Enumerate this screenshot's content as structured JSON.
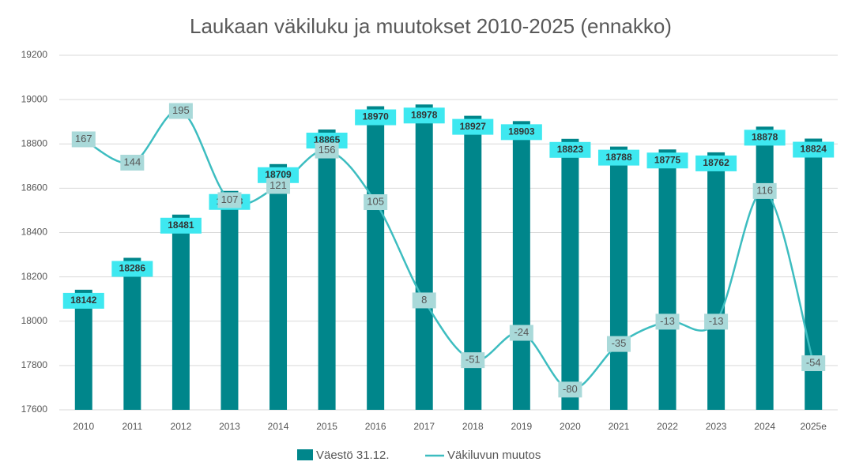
{
  "chart_data": {
    "type": "bar_line",
    "title": "Laukaan väkiluku ja muutokset 2010-2025 (ennakko)",
    "categories": [
      "2010",
      "2011",
      "2012",
      "2013",
      "2014",
      "2015",
      "2016",
      "2017",
      "2018",
      "2019",
      "2020",
      "2021",
      "2022",
      "2023",
      "2024",
      "2025e"
    ],
    "series": [
      {
        "name": "Väestö 31.12.",
        "color": "#00868b",
        "type": "bar",
        "values": [
          18142,
          18286,
          18481,
          18588,
          18709,
          18865,
          18970,
          18978,
          18927,
          18903,
          18823,
          18788,
          18775,
          18762,
          18878,
          18824
        ]
      },
      {
        "name": "Väkiluvun muutos",
        "color": "#3dbdc0",
        "type": "line",
        "axis": "y2",
        "values": [
          167,
          144,
          195,
          107,
          121,
          156,
          105,
          8,
          -51,
          -24,
          -80,
          -35,
          -13,
          -13,
          116,
          -54
        ]
      }
    ],
    "ylim": [
      17600,
      19200
    ],
    "yticks": [
      17600,
      17800,
      18000,
      18200,
      18400,
      18600,
      18800,
      19000,
      19200
    ],
    "y2lim": [
      -100,
      250
    ],
    "grid": true,
    "legend": "bottom"
  }
}
